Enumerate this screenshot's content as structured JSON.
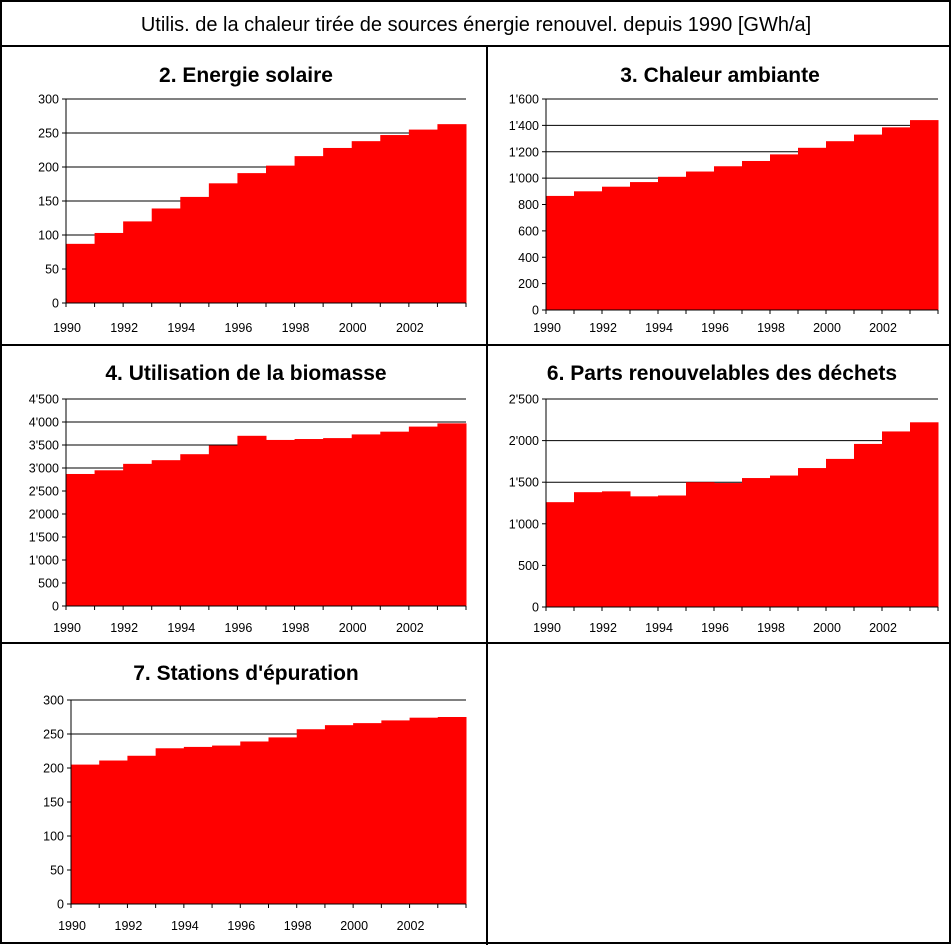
{
  "title": "Utilis. de la chaleur tirée de sources énergie renouvel. depuis 1990  [GWh/a]",
  "colors": {
    "bar": "#ff0000",
    "grid": "#000000",
    "border": "#000000",
    "background": "#ffffff"
  },
  "chart_data": [
    {
      "type": "bar",
      "title": "2. Energie solaire",
      "x": [
        1990,
        1991,
        1992,
        1993,
        1994,
        1995,
        1996,
        1997,
        1998,
        1999,
        2000,
        2001,
        2002,
        2003
      ],
      "values": [
        87,
        103,
        120,
        139,
        156,
        176,
        191,
        202,
        216,
        228,
        238,
        247,
        255,
        263
      ],
      "x_tick_labels": [
        "1990",
        "1992",
        "1994",
        "1996",
        "1998",
        "2000",
        "2002"
      ],
      "y_tick_values": [
        0,
        50,
        100,
        150,
        200,
        250,
        300
      ],
      "y_tick_labels": [
        "0",
        "50",
        "100",
        "150",
        "200",
        "250",
        "300"
      ],
      "ylim": [
        0,
        300
      ],
      "grid": true
    },
    {
      "type": "bar",
      "title": "3. Chaleur ambiante",
      "x": [
        1990,
        1991,
        1992,
        1993,
        1994,
        1995,
        1996,
        1997,
        1998,
        1999,
        2000,
        2001,
        2002,
        2003
      ],
      "values": [
        865,
        900,
        935,
        970,
        1010,
        1050,
        1090,
        1130,
        1180,
        1230,
        1280,
        1330,
        1385,
        1440
      ],
      "x_tick_labels": [
        "1990",
        "1992",
        "1994",
        "1996",
        "1998",
        "2000",
        "2002"
      ],
      "y_tick_values": [
        0,
        200,
        400,
        600,
        800,
        1000,
        1200,
        1400,
        1600
      ],
      "y_tick_labels": [
        "0",
        "200",
        "400",
        "600",
        "800",
        "1'000",
        "1'200",
        "1'400",
        "1'600"
      ],
      "ylim": [
        0,
        1600
      ],
      "grid": true
    },
    {
      "type": "bar",
      "title": "4. Utilisation de la biomasse",
      "x": [
        1990,
        1991,
        1992,
        1993,
        1994,
        1995,
        1996,
        1997,
        1998,
        1999,
        2000,
        2001,
        2002,
        2003
      ],
      "values": [
        2870,
        2950,
        3090,
        3170,
        3300,
        3490,
        3700,
        3610,
        3630,
        3650,
        3730,
        3790,
        3900,
        3970
      ],
      "x_tick_labels": [
        "1990",
        "1992",
        "1994",
        "1996",
        "1998",
        "2000",
        "2002"
      ],
      "y_tick_values": [
        0,
        500,
        1000,
        1500,
        2000,
        2500,
        3000,
        3500,
        4000,
        4500
      ],
      "y_tick_labels": [
        "0",
        "500",
        "1'000",
        "1'500",
        "2'000",
        "2'500",
        "3'000",
        "3'500",
        "4'000",
        "4'500"
      ],
      "ylim": [
        0,
        4500
      ],
      "grid": true
    },
    {
      "type": "bar",
      "title": "6. Parts renouvelables des déchets",
      "x": [
        1990,
        1991,
        1992,
        1993,
        1994,
        1995,
        1996,
        1997,
        1998,
        1999,
        2000,
        2001,
        2002,
        2003
      ],
      "values": [
        1260,
        1380,
        1390,
        1330,
        1340,
        1500,
        1490,
        1550,
        1580,
        1670,
        1780,
        1960,
        2110,
        2220
      ],
      "x_tick_labels": [
        "1990",
        "1992",
        "1994",
        "1996",
        "1998",
        "2000",
        "2002"
      ],
      "y_tick_values": [
        0,
        500,
        1000,
        1500,
        2000,
        2500
      ],
      "y_tick_labels": [
        "0",
        "500",
        "1'000",
        "1'500",
        "2'000",
        "2'500"
      ],
      "ylim": [
        0,
        2500
      ],
      "grid": true
    },
    {
      "type": "bar",
      "title": "7. Stations d'épuration",
      "x": [
        1990,
        1991,
        1992,
        1993,
        1994,
        1995,
        1996,
        1997,
        1998,
        1999,
        2000,
        2001,
        2002,
        2003
      ],
      "values": [
        205,
        211,
        218,
        229,
        231,
        233,
        239,
        245,
        257,
        263,
        266,
        270,
        274,
        275
      ],
      "x_tick_labels": [
        "1990",
        "1992",
        "1994",
        "1996",
        "1998",
        "2000",
        "2002"
      ],
      "y_tick_values": [
        0,
        50,
        100,
        150,
        200,
        250,
        300
      ],
      "y_tick_labels": [
        "0",
        "50",
        "100",
        "150",
        "200",
        "250",
        "300"
      ],
      "ylim": [
        0,
        300
      ],
      "grid": true
    }
  ]
}
